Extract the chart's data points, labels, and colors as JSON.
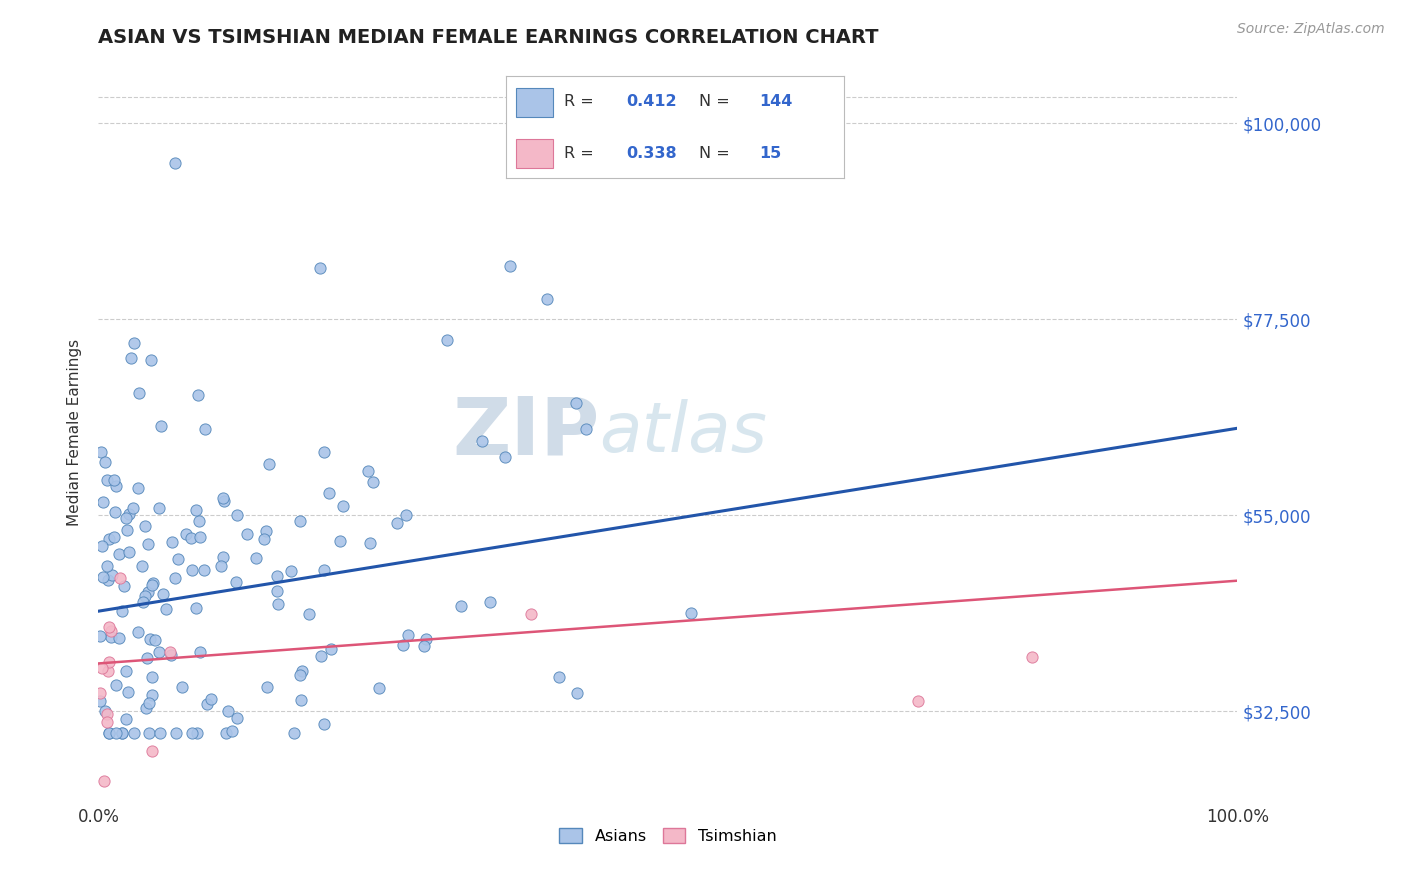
{
  "title": "ASIAN VS TSIMSHIAN MEDIAN FEMALE EARNINGS CORRELATION CHART",
  "source_text": "Source: ZipAtlas.com",
  "ylabel": "Median Female Earnings",
  "xlim": [
    0.0,
    1.0
  ],
  "ylim": [
    22000,
    107000
  ],
  "yticks": [
    32500,
    55000,
    77500,
    100000
  ],
  "ytick_labels": [
    "$32,500",
    "$55,000",
    "$77,500",
    "$100,000"
  ],
  "xticks": [
    0.0,
    1.0
  ],
  "xtick_labels": [
    "0.0%",
    "100.0%"
  ],
  "title_fontsize": 14,
  "axis_label_fontsize": 11,
  "tick_fontsize": 12,
  "background_color": "#ffffff",
  "grid_color": "#cccccc",
  "asian_color": "#aac4e8",
  "asian_edge_color": "#5588bb",
  "tsimshian_color": "#f4b8c8",
  "tsimshian_edge_color": "#dd7799",
  "asian_line_color": "#2255aa",
  "tsimshian_line_color": "#dd5577",
  "watermark_bold_color": "#d0dce8",
  "watermark_light_color": "#c8dce8",
  "ytick_color": "#3366cc",
  "xtick_color": "#333333",
  "legend_R_color": "#3366cc",
  "legend_N_color": "#3366cc",
  "asian_R": 0.412,
  "asian_N": 144,
  "tsimshian_R": 0.338,
  "tsimshian_N": 15,
  "asian_line_x0": 0.0,
  "asian_line_y0": 44000,
  "asian_line_x1": 1.0,
  "asian_line_y1": 65000,
  "tsimshian_line_x0": 0.0,
  "tsimshian_line_y0": 38000,
  "tsimshian_line_x1": 1.0,
  "tsimshian_line_y1": 47500
}
